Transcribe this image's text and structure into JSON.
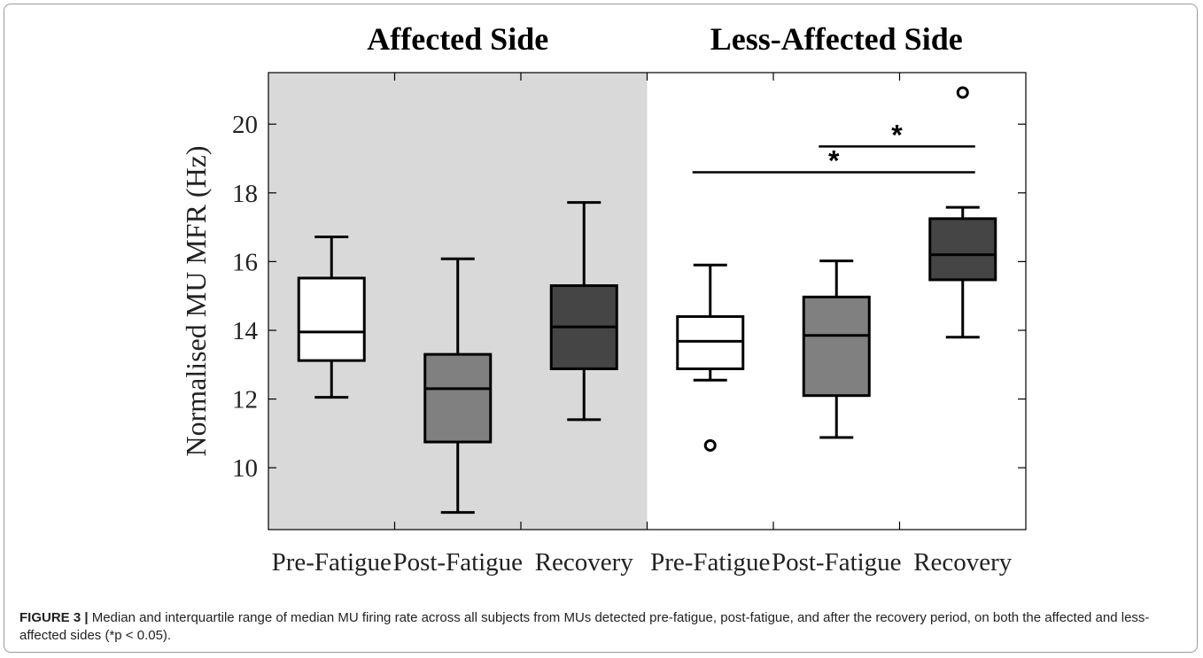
{
  "caption": {
    "label": "FIGURE 3 |",
    "text": "Median and interquartile range of median MU firing rate across all subjects from MUs detected pre-fatigue, post-fatigue, and after the recovery period, on both the affected and less-affected sides (*p < 0.05)."
  },
  "chart_data": {
    "type": "box",
    "ylabel": "Normalised MU MFR (Hz)",
    "ylim": [
      8.2,
      21.5
    ],
    "yticks": [
      10,
      12,
      14,
      16,
      18,
      20
    ],
    "grid": false,
    "panels": [
      {
        "title": "Affected Side",
        "background": "#d9d9d9"
      },
      {
        "title": "Less-Affected Side",
        "background": "#ffffff"
      }
    ],
    "categories": [
      "Pre-Fatigue",
      "Post-Fatigue",
      "Recovery",
      "Pre-Fatigue",
      "Post-Fatigue",
      "Recovery"
    ],
    "boxes": [
      {
        "panel": 0,
        "min": 12.05,
        "q1": 13.12,
        "median": 13.95,
        "q3": 15.52,
        "max": 16.72,
        "outliers": [],
        "fill": "#ffffff"
      },
      {
        "panel": 0,
        "min": 8.7,
        "q1": 10.75,
        "median": 12.3,
        "q3": 13.3,
        "max": 16.08,
        "outliers": [],
        "fill": "#808080"
      },
      {
        "panel": 0,
        "min": 11.4,
        "q1": 12.88,
        "median": 14.1,
        "q3": 15.3,
        "max": 17.72,
        "outliers": [],
        "fill": "#454545"
      },
      {
        "panel": 1,
        "min": 12.55,
        "q1": 12.88,
        "median": 13.68,
        "q3": 14.4,
        "max": 15.9,
        "outliers": [
          10.65
        ],
        "fill": "#ffffff"
      },
      {
        "panel": 1,
        "min": 10.88,
        "q1": 12.1,
        "median": 13.85,
        "q3": 14.97,
        "max": 16.02,
        "outliers": [],
        "fill": "#808080"
      },
      {
        "panel": 1,
        "min": 13.8,
        "q1": 15.47,
        "median": 16.2,
        "q3": 17.25,
        "max": 17.58,
        "outliers": [
          20.92
        ],
        "fill": "#454545"
      }
    ],
    "significance": [
      {
        "from": 3,
        "to": 5,
        "y": 18.6,
        "label": "*"
      },
      {
        "from": 4,
        "to": 5,
        "y": 19.35,
        "label": "*"
      }
    ]
  }
}
